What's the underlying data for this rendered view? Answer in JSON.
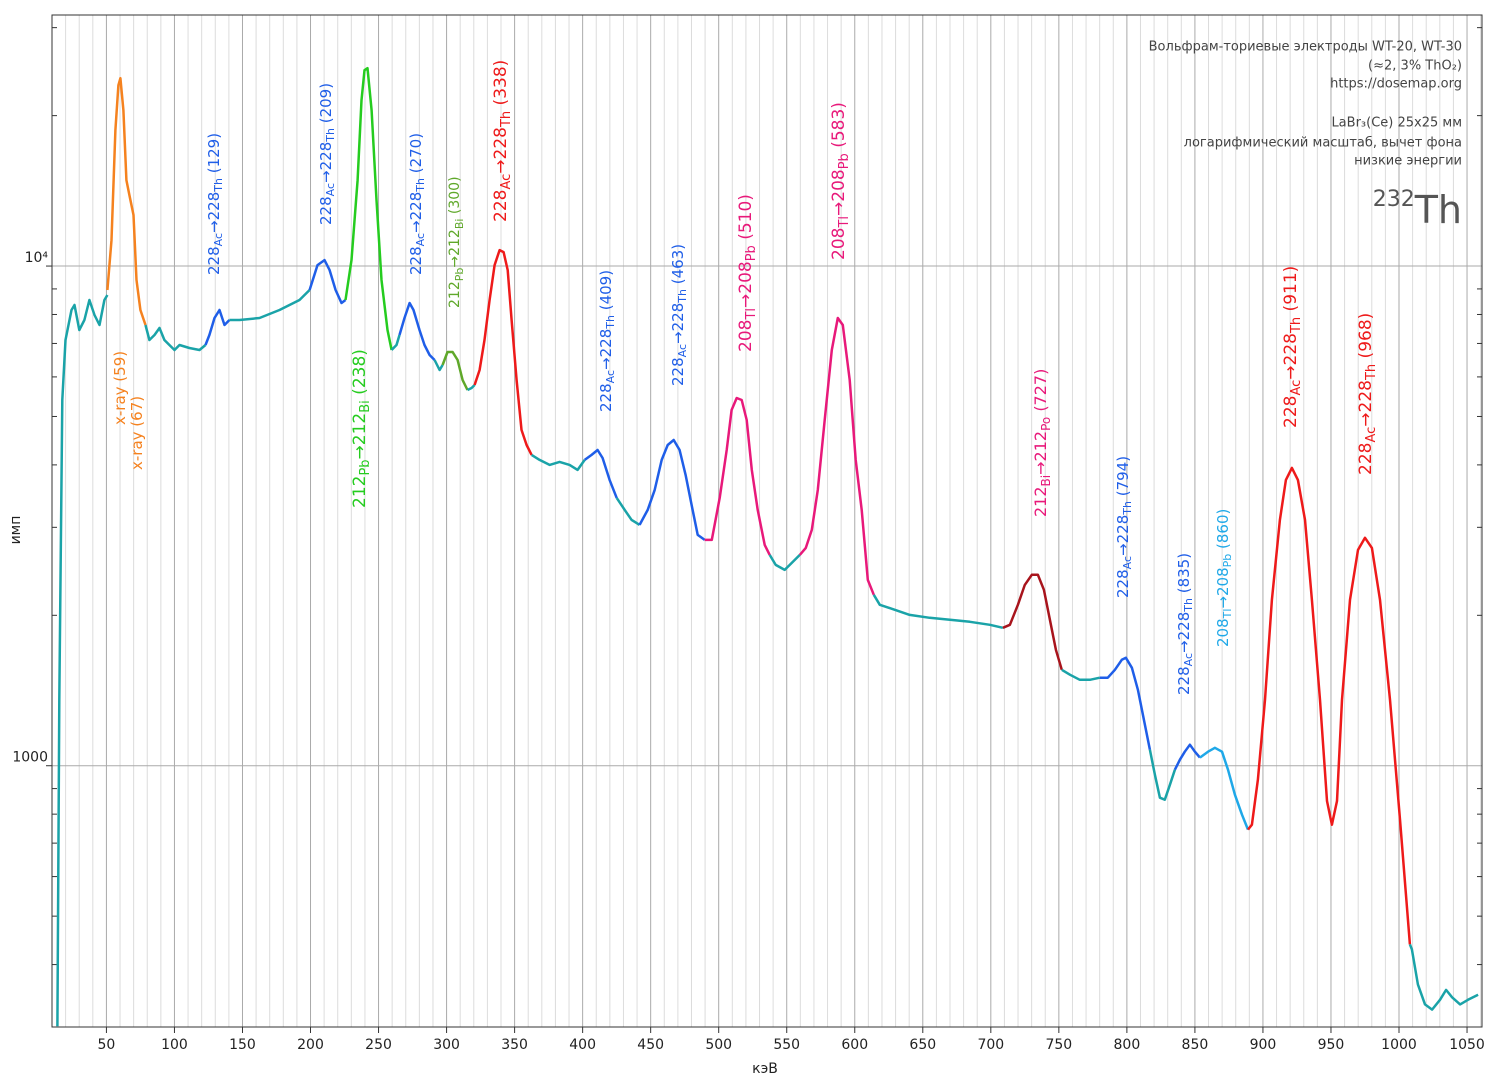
{
  "chart_data": {
    "type": "line",
    "x_label": "кэВ",
    "y_label": "имп",
    "xlim": [
      10,
      1061
    ],
    "ylim": [
      300,
      31800
    ],
    "log_y": true,
    "grid": true,
    "xticks": [
      50,
      100,
      150,
      200,
      250,
      300,
      350,
      400,
      450,
      500,
      550,
      600,
      650,
      700,
      750,
      800,
      850,
      900,
      950,
      1000,
      1050
    ],
    "xminor_ticks": [
      20,
      30,
      40,
      60,
      70,
      80,
      90,
      110,
      120,
      130,
      140,
      160,
      170,
      180,
      190,
      210,
      220,
      230,
      240,
      260,
      270,
      280,
      290,
      310,
      320,
      330,
      340,
      360,
      370,
      380,
      390,
      410,
      420,
      430,
      440,
      460,
      470,
      480,
      490,
      510,
      520,
      530,
      540,
      560,
      570,
      580,
      590,
      610,
      620,
      630,
      640,
      660,
      670,
      680,
      690,
      710,
      720,
      730,
      740,
      760,
      770,
      780,
      790,
      810,
      820,
      830,
      840,
      860,
      870,
      880,
      890,
      910,
      920,
      930,
      940,
      960,
      970,
      980,
      990,
      1010,
      1020,
      1030,
      1040,
      1060
    ],
    "yticks": [
      {
        "value": 10000,
        "label": "10⁴"
      },
      1000
    ],
    "yminor_ticks": [
      400,
      500,
      600,
      700,
      800,
      900,
      2000,
      3000,
      4000,
      5000,
      6000,
      7000,
      8000,
      9000,
      20000,
      30000
    ],
    "notes": [
      "Вольфрам-ториевые электроды WT-20, WT-30",
      "(≈2, 3% ThO₂)",
      "https://dosemap.org",
      "LaBr₃(Ce) 25x25 мм",
      "логарифмический масштаб, вычет фона",
      "низкие энергии"
    ],
    "isotope": [
      "232",
      "Th"
    ],
    "series": [
      {
        "color": "#1aa3a8",
        "x": [
          14.0,
          15.4,
          17.6,
          19.9,
          24.3,
          26.5,
          30.1,
          33.8,
          37.5,
          41.2,
          44.9,
          48.5,
          50.7
        ],
        "values": [
          301,
          1355,
          5395,
          7112,
          8166,
          8356,
          7447,
          7798,
          8551,
          7980,
          7621,
          8551,
          8750
        ]
      },
      {
        "color": "#f5821f",
        "x": [
          50.7,
          53.7,
          56.6,
          58.8,
          60.3,
          62.5,
          64.7,
          66.9,
          69.9,
          72.1,
          75.0,
          78.7
        ],
        "values": [
          8954,
          11272,
          18707,
          23010,
          23770,
          20510,
          14860,
          13870,
          12650,
          9376,
          8166,
          7621
        ]
      },
      {
        "color": "#1aa3a8",
        "x": [
          78.7,
          81.6,
          85.3,
          89.0,
          92.6,
          96.3,
          100.0,
          103.7,
          111.0,
          118.4,
          122.8
        ],
        "values": [
          7621,
          7112,
          7278,
          7516,
          7112,
          6950,
          6792,
          6950,
          6855,
          6792,
          6950
        ]
      },
      {
        "color": "#1f5ee8",
        "x": [
          122.8,
          125.7,
          129.4,
          133.1,
          136.8,
          140.4
        ],
        "values": [
          6950,
          7278,
          7870,
          8166,
          7621,
          7798
        ]
      },
      {
        "color": "#1aa3a8",
        "x": [
          140.4,
          147.8,
          162.5,
          177.2,
          191.9,
          199.3
        ],
        "values": [
          7798,
          7798,
          7870,
          8166,
          8551,
          8954
        ]
      },
      {
        "color": "#1f5ee8",
        "x": [
          199.3,
          205.1,
          210.3,
          214.0,
          218.4,
          222.8,
          225.7
        ],
        "values": [
          8954,
          10046,
          10280,
          9817,
          8954,
          8433,
          8551
        ]
      },
      {
        "color": "#25cc1f",
        "x": [
          225.7,
          230.1,
          234.6,
          237.5,
          239.7,
          241.9,
          244.9,
          248.5,
          252.2,
          256.6,
          259.6
        ],
        "values": [
          8551,
          10280,
          14860,
          21478,
          24660,
          24890,
          20510,
          13550,
          9376,
          7447,
          6792
        ]
      },
      {
        "color": "#1aa3a8",
        "x": [
          259.6,
          263.2,
          265.4
        ],
        "values": [
          6792,
          6950,
          7278
        ]
      },
      {
        "color": "#1f5ee8",
        "x": [
          265.4,
          269.1,
          272.8,
          275.7,
          280.1,
          283.8,
          287.5,
          291.2
        ],
        "values": [
          7278,
          7870,
          8433,
          8166,
          7447,
          6950,
          6637,
          6486
        ]
      },
      {
        "color": "#1aa3a8",
        "x": [
          291.2,
          294.9,
          297.1
        ],
        "values": [
          6486,
          6194,
          6339
        ]
      },
      {
        "color": "#5fa82a",
        "x": [
          297.1,
          300.7,
          304.4,
          308.1,
          311.8,
          315.4
        ],
        "values": [
          6339,
          6730,
          6730,
          6486,
          5916,
          5649
        ]
      },
      {
        "color": "#1aa3a8",
        "x": [
          315.4,
          318.4,
          320.6
        ],
        "values": [
          5649,
          5700,
          5781
        ]
      },
      {
        "color": "#ee1a1a",
        "x": [
          320.6,
          324.3,
          327.9,
          331.6,
          335.3,
          339.0,
          341.9,
          344.9,
          347.8,
          351.5,
          355.1,
          358.8,
          362.5
        ],
        "values": [
          5781,
          6194,
          7112,
          8551,
          10046,
          10765,
          10666,
          9817,
          7798,
          5916,
          4699,
          4385,
          4188
        ]
      },
      {
        "color": "#1aa3a8",
        "x": [
          362.5,
          368.4,
          375.7,
          383.1,
          390.4,
          396.3,
          401.5
        ],
        "values": [
          4188,
          4093,
          3999,
          4055,
          3999,
          3908,
          4093
        ]
      },
      {
        "color": "#1f5ee8",
        "x": [
          401.5,
          406.6,
          411.0,
          414.7,
          419.8,
          425.0
        ],
        "values": [
          4093,
          4188,
          4285,
          4130,
          3733,
          3436
        ]
      },
      {
        "color": "#1aa3a8",
        "x": [
          425.0,
          430.9,
          436.0,
          441.9
        ],
        "values": [
          3436,
          3251,
          3105,
          3034
        ]
      },
      {
        "color": "#1f5ee8",
        "x": [
          441.9,
          447.8,
          453.0,
          458.1,
          462.5,
          466.9,
          471.3,
          475.7,
          480.1,
          484.6,
          489.7
        ],
        "values": [
          3034,
          3251,
          3565,
          4093,
          4385,
          4487,
          4285,
          3820,
          3327,
          2897,
          2831
        ]
      },
      {
        "color": "#e8197a",
        "x": [
          489.7,
          494.9,
          500.7,
          505.9,
          509.5,
          513.2,
          516.9,
          520.6,
          524.3,
          528.7,
          533.8,
          537.5
        ],
        "values": [
          2831,
          2831,
          3436,
          4285,
          5152,
          5445,
          5395,
          4920,
          3908,
          3251,
          2767,
          2642
        ]
      },
      {
        "color": "#1aa3a8",
        "x": [
          537.5,
          541.9,
          548.5,
          555.9,
          559.6
        ],
        "values": [
          2642,
          2523,
          2466,
          2582,
          2642
        ]
      },
      {
        "color": "#e8197a",
        "x": [
          559.6,
          564.0,
          568.4,
          572.8,
          577.9,
          583.1,
          587.5,
          591.2,
          596.3,
          600.7,
          605.1,
          609.6,
          614.0
        ],
        "values": [
          2642,
          2729,
          2965,
          3565,
          4920,
          6792,
          7870,
          7621,
          5916,
          4093,
          3251,
          2355,
          2198
        ]
      },
      {
        "color": "#1aa3a8",
        "x": [
          614.0,
          618.4,
          629.4,
          640.4,
          655.1,
          669.9,
          684.6,
          699.3,
          708.9
        ],
        "values": [
          2198,
          2099,
          2051,
          2004,
          1977,
          1959,
          1941,
          1914,
          1888
        ]
      },
      {
        "color": "#a8141c",
        "x": [
          708.9,
          714.0,
          719.9,
          725.0,
          730.1,
          734.6,
          739.0,
          743.4,
          747.8,
          752.2
        ],
        "values": [
          1888,
          1914,
          2099,
          2301,
          2410,
          2410,
          2249,
          1959,
          1706,
          1556
        ]
      },
      {
        "color": "#1aa3a8",
        "x": [
          752.2,
          758.1,
          765.4,
          772.8,
          780.1
        ],
        "values": [
          1556,
          1521,
          1486,
          1486,
          1500
        ]
      },
      {
        "color": "#1f5ee8",
        "x": [
          780.1,
          786.0,
          791.2,
          796.3,
          799.3,
          803.7,
          808.1,
          812.5,
          816.9
        ],
        "values": [
          1500,
          1500,
          1556,
          1629,
          1644,
          1570,
          1419,
          1236,
          1076
        ]
      },
      {
        "color": "#1aa3a8",
        "x": [
          816.9,
          820.6,
          824.3,
          827.9,
          831.6,
          835.3
        ],
        "values": [
          1076,
          959,
          863,
          855,
          916,
          982
        ]
      },
      {
        "color": "#1f5ee8",
        "x": [
          835.3,
          839.0,
          842.6,
          846.3,
          850.0,
          853.7
        ],
        "values": [
          982,
          1028,
          1067,
          1102,
          1067,
          1038
        ]
      },
      {
        "color": "#1fa8e8",
        "x": [
          853.7,
          859.6,
          864.7,
          869.9,
          874.3,
          879.4,
          884.6,
          889.0
        ],
        "values": [
          1038,
          1067,
          1086,
          1067,
          982,
          875,
          798,
          745
        ]
      },
      {
        "color": "#ee1a1a",
        "x": [
          889.0,
          891.9,
          896.3,
          901.5,
          906.6,
          912.5,
          916.9,
          921.3,
          925.7,
          930.9,
          936.0,
          941.9,
          947.1,
          950.7,
          954.4,
          958.1,
          964.0,
          969.9,
          975.0,
          980.1,
          986.0,
          993.4,
          1000.7,
          1008.0
        ],
        "values": [
          745,
          762,
          938,
          1355,
          2148,
          3105,
          3733,
          3945,
          3733,
          3105,
          2148,
          1355,
          850,
          762,
          850,
          1355,
          2148,
          2704,
          2858,
          2729,
          2148,
          1355,
          780,
          439
        ]
      },
      {
        "color": "#1aa3a8",
        "x": [
          1008.0,
          1009.5,
          1013.9,
          1019.1,
          1024.3,
          1030.1,
          1034.6,
          1039.0,
          1044.9,
          1050.7,
          1058.1
        ],
        "values": [
          439,
          429,
          365,
          333,
          325,
          340,
          356,
          344,
          333,
          340,
          348
        ]
      }
    ],
    "annotations": [
      {
        "color": "#f5821f",
        "parts": [
          "x-ray (59)"
        ]
      },
      {
        "color": "#f5821f",
        "parts": [
          "x-ray (67)"
        ]
      },
      {
        "color": "#1f5ee8",
        "parts": [
          "228",
          "Ac",
          "→",
          "228",
          "Th",
          " (129)"
        ]
      },
      {
        "color": "#1f5ee8",
        "parts": [
          "228",
          "Ac",
          "→",
          "228",
          "Th",
          " (209)"
        ]
      },
      {
        "color": "#25cc1f",
        "parts": [
          "212",
          "Pb",
          "→",
          "212",
          "Bi",
          " (238)"
        ]
      },
      {
        "color": "#1f5ee8",
        "parts": [
          "228",
          "Ac",
          "→",
          "228",
          "Th",
          " (270)"
        ]
      },
      {
        "color": "#5fa82a",
        "parts": [
          "212",
          "Pb",
          "→",
          "212",
          "Bi",
          " (300)"
        ]
      },
      {
        "color": "#ee1a1a",
        "parts": [
          "228",
          "Ac",
          "→",
          "228",
          "Th",
          " (338)"
        ]
      },
      {
        "color": "#1f5ee8",
        "parts": [
          "228",
          "Ac",
          "→",
          "228",
          "Th",
          " (409)"
        ]
      },
      {
        "color": "#1f5ee8",
        "parts": [
          "228",
          "Ac",
          "→",
          "228",
          "Th",
          " (463)"
        ]
      },
      {
        "color": "#e8197a",
        "parts": [
          "208",
          "Tl",
          "→",
          "208",
          "Pb",
          " (510)"
        ]
      },
      {
        "color": "#e8197a",
        "parts": [
          "208",
          "Tl",
          "→",
          "208",
          "Pb",
          " (583)"
        ]
      },
      {
        "color": "#e8197a",
        "parts": [
          "212",
          "Bi",
          "→",
          "212",
          "Po",
          " (727)"
        ]
      },
      {
        "color": "#1f5ee8",
        "parts": [
          "228",
          "Ac",
          "→",
          "228",
          "Th",
          " (794)"
        ]
      },
      {
        "color": "#1f5ee8",
        "parts": [
          "228",
          "Ac",
          "→",
          "228",
          "Th",
          " (835)"
        ]
      },
      {
        "color": "#1fa8e8",
        "parts": [
          "208",
          "Tl",
          "→",
          "208",
          "Pb",
          " (860)"
        ]
      },
      {
        "color": "#ee1a1a",
        "parts": [
          "228",
          "Ac",
          "→",
          "228",
          "Th",
          " (911)"
        ]
      },
      {
        "color": "#ee1a1a",
        "parts": [
          "228",
          "Ac",
          "→",
          "228",
          "Th",
          " (968)"
        ]
      }
    ]
  }
}
